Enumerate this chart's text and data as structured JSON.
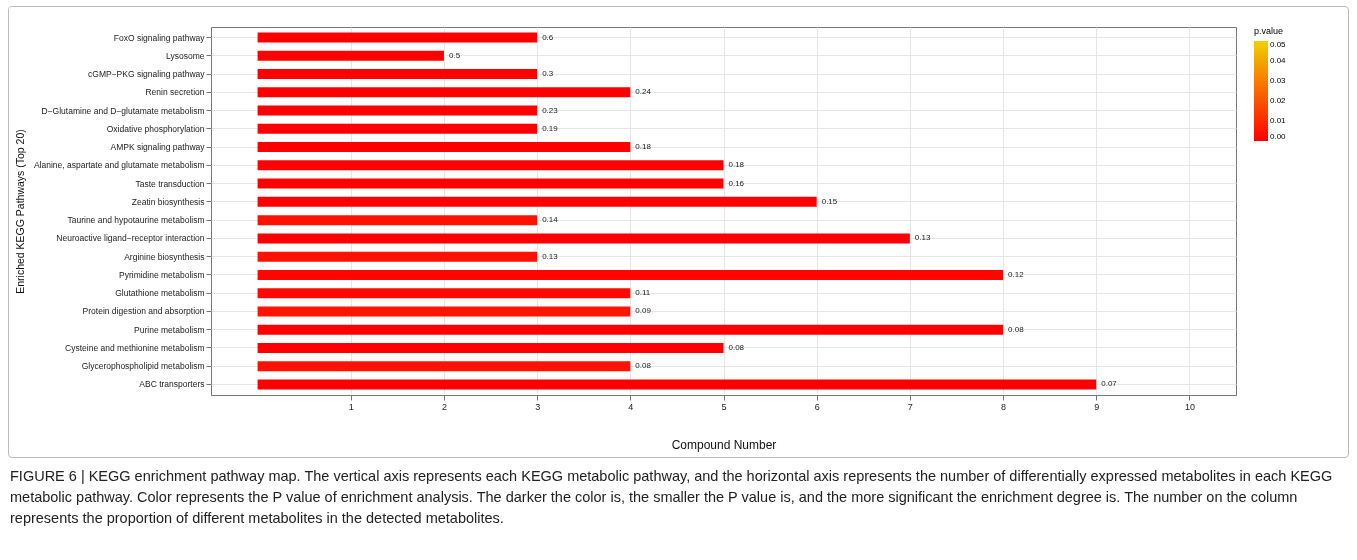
{
  "chart_data": {
    "type": "bar",
    "orientation": "horizontal",
    "categories": [
      "FoxO signaling pathway",
      "Lysosome",
      "cGMP−PKG signaling pathway",
      "Renin secretion",
      "D−Glutamine and D−glutamate metabolism",
      "Oxidative phosphorylation",
      "AMPK signaling pathway",
      "Alanine, aspartate and glutamate metabolism",
      "Taste transduction",
      "Zeatin biosynthesis",
      "Taurine and hypotaurine metabolism",
      "Neuroactive ligand−receptor interaction",
      "Arginine biosynthesis",
      "Pyrimidine metabolism",
      "Glutathione metabolism",
      "Protein digestion and absorption",
      "Purine metabolism",
      "Cysteine and methionine metabolism",
      "Glycerophospholipid metabolism",
      "ABC transporters"
    ],
    "values": [
      3,
      2,
      3,
      4,
      3,
      3,
      4,
      5,
      5,
      6,
      3,
      7,
      3,
      8,
      4,
      4,
      8,
      5,
      4,
      9
    ],
    "cvalues": [
      0,
      0,
      0,
      0,
      0,
      0,
      0,
      0,
      0,
      0,
      0.004,
      0,
      0.004,
      0.001,
      0.002,
      0.005,
      0,
      0,
      0.004,
      0
    ],
    "clim": [
      0,
      0.05
    ],
    "cticks": [
      {
        "value": 0,
        "label": "0.00"
      },
      {
        "value": 0.01,
        "label": "0.01"
      },
      {
        "value": 0.02,
        "label": "0.02"
      },
      {
        "value": 0.03,
        "label": "0.03"
      },
      {
        "value": 0.04,
        "label": "0.04"
      },
      {
        "value": 0.05,
        "label": "0.05"
      }
    ],
    "clabel": "p.value",
    "xlim": [
      -0.5,
      10.5
    ],
    "xticks": [
      1,
      2,
      3,
      4,
      5,
      6,
      7,
      8,
      9,
      10
    ],
    "xlabel": "Compound Number",
    "ylabel": "Enriched KEGG Pathways (Top 20)",
    "grid": true,
    "annotations": [
      {
        "text": "0.6",
        "x": 3,
        "y": "FoxO signaling pathway"
      },
      {
        "text": "0.5",
        "x": 2,
        "y": "Lysosome"
      },
      {
        "text": "0.3",
        "x": 3,
        "y": "cGMP−PKG signaling pathway"
      },
      {
        "text": "0.24",
        "x": 4,
        "y": "Renin secretion"
      },
      {
        "text": "0.23",
        "x": 3,
        "y": "D−Glutamine and D−glutamate metabolism"
      },
      {
        "text": "0.19",
        "x": 3,
        "y": "Oxidative phosphorylation"
      },
      {
        "text": "0.18",
        "x": 4,
        "y": "AMPK signaling pathway"
      },
      {
        "text": "0.18",
        "x": 5,
        "y": "Alanine, aspartate and glutamate metabolism"
      },
      {
        "text": "0.16",
        "x": 5,
        "y": "Taste transduction"
      },
      {
        "text": "0.15",
        "x": 6,
        "y": "Zeatin biosynthesis"
      },
      {
        "text": "0.14",
        "x": 3,
        "y": "Taurine and hypotaurine metabolism"
      },
      {
        "text": "0.13",
        "x": 7,
        "y": "Neuroactive ligand−receptor interaction"
      },
      {
        "text": "0.13",
        "x": 3,
        "y": "Arginine biosynthesis"
      },
      {
        "text": "0.12",
        "x": 8,
        "y": "Pyrimidine metabolism"
      },
      {
        "text": "0.11",
        "x": 4,
        "y": "Glutathione metabolism"
      },
      {
        "text": "0.09",
        "x": 4,
        "y": "Protein digestion and absorption"
      },
      {
        "text": "0.08",
        "x": 8,
        "y": "Purine metabolism"
      },
      {
        "text": "0.08",
        "x": 5,
        "y": "Cysteine and methionine metabolism"
      },
      {
        "text": "0.08",
        "x": 4,
        "y": "Glycerophospholipid metabolism"
      },
      {
        "text": "0.07",
        "x": 9,
        "y": "ABC transporters"
      },
      "FIGURE 6 | KEGG enrichment pathway map. The vertical axis represents each KEGG metabolic pathway, and the horizontal axis represents the number of differentially expressed metabolites in each KEGG metabolic pathway. Color represents the P value of enrichment analysis. The darker the color is, the smaller the P value is, and the more significant the enrichment degree is. The number on the column represents the proportion of different metabolites in the detected metabolites."
    ]
  }
}
